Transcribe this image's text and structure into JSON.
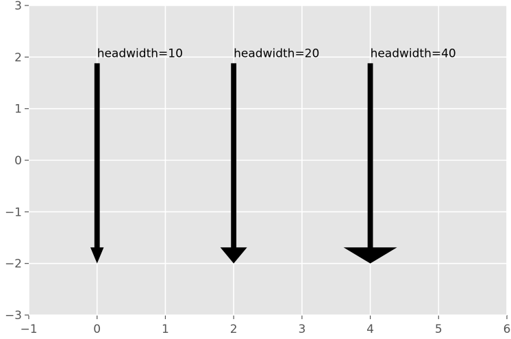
{
  "chart_data": {
    "type": "annotate",
    "xlim": [
      -1,
      6
    ],
    "ylim": [
      -3,
      3
    ],
    "xticks": [
      {
        "value": -1,
        "label": "−1"
      },
      0,
      1,
      2,
      3,
      4,
      5,
      6
    ],
    "yticks": [
      {
        "value": -3,
        "label": "−3"
      },
      {
        "value": -2,
        "label": "−2"
      },
      {
        "value": -1,
        "label": "−1"
      },
      0,
      1,
      2,
      3
    ],
    "grid": true,
    "color": "#000000",
    "annotations": [
      {
        "text": "headwidth=10",
        "xy": [
          0,
          -2
        ],
        "xytext": [
          0,
          2
        ],
        "headwidth": 10
      },
      {
        "text": "headwidth=20",
        "xy": [
          2,
          -2
        ],
        "xytext": [
          2,
          2
        ],
        "headwidth": 20
      },
      {
        "text": "headwidth=40",
        "xy": [
          4,
          -2
        ],
        "xytext": [
          4,
          2
        ],
        "headwidth": 40
      }
    ]
  }
}
